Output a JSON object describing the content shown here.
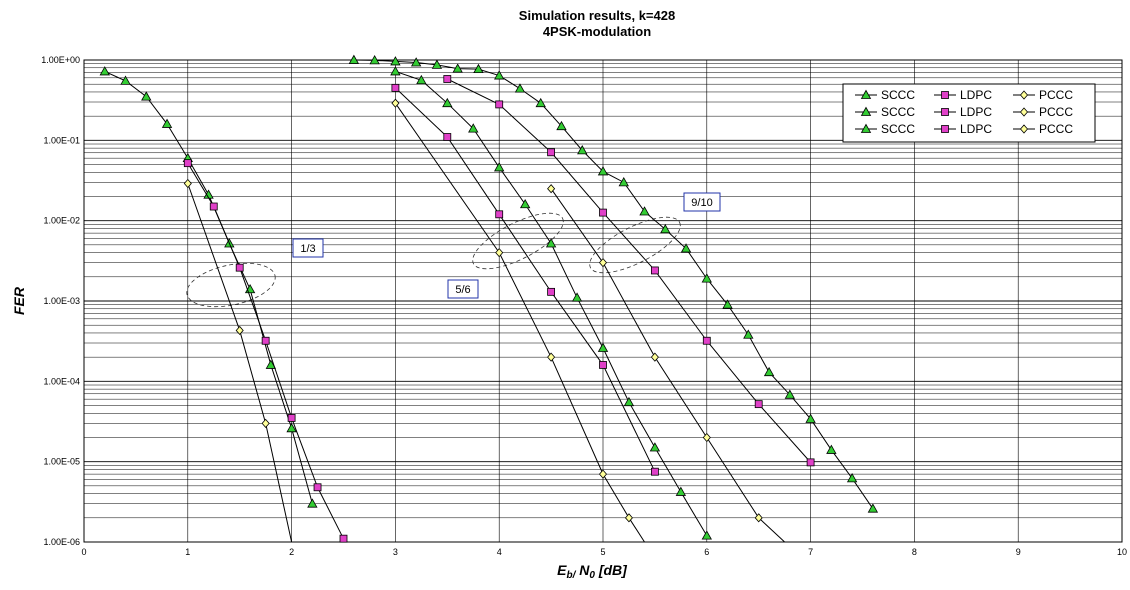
{
  "chart_data": {
    "type": "line",
    "title": "Simulation results, k=428",
    "subtitle": "4PSK-modulation",
    "xlabel_main": "E",
    "xlabel_sub1": "b/",
    "xlabel_mid": " N",
    "xlabel_sub2": "0",
    "xlabel_unit": " [dB]",
    "ylabel": "FER",
    "xlim": [
      0,
      10
    ],
    "ylim": [
      1e-06,
      1
    ],
    "yscale": "log",
    "grid": true,
    "x_ticks": [
      "0",
      "1",
      "2",
      "3",
      "4",
      "5",
      "6",
      "7",
      "8",
      "9",
      "10"
    ],
    "y_ticks": [
      "1.00E+00",
      "1.00E-01",
      "1.00E-02",
      "1.00E-03",
      "1.00E-04",
      "1.00E-05",
      "1.00E-06"
    ],
    "legend_position": "top-right",
    "legend": [
      [
        "SCCC",
        "LDPC",
        "PCCC"
      ],
      [
        "SCCC",
        "LDPC",
        "PCCC"
      ],
      [
        "SCCC",
        "LDPC",
        "PCCC"
      ]
    ],
    "annotations": [
      {
        "label": "1/3"
      },
      {
        "label": "5/6"
      },
      {
        "label": "9/10"
      }
    ],
    "colors": {
      "scc_marker": "#33cc33",
      "ldpc_marker": "#e040c8",
      "pccc_marker": "#ffff99",
      "line": "#000000",
      "annotation_border": "#2233aa"
    },
    "series": [
      {
        "name": "SCCC",
        "marker": "triangle",
        "x": [
          0.2,
          0.4,
          0.6,
          0.8,
          1.0,
          1.2,
          1.4,
          1.6,
          1.8,
          2.0,
          2.2
        ],
        "y": [
          0.72,
          0.55,
          0.35,
          0.16,
          0.06,
          0.021,
          0.0052,
          0.0014,
          0.00016,
          2.6e-05,
          3e-06
        ]
      },
      {
        "name": "LDPC",
        "marker": "square",
        "x": [
          1.0,
          1.25,
          1.5,
          1.75,
          2.0,
          2.25,
          2.5
        ],
        "y": [
          0.052,
          0.015,
          0.0026,
          0.00032,
          3.5e-05,
          4.8e-06,
          1.1e-06
        ]
      },
      {
        "name": "PCCC",
        "marker": "diamond",
        "x": [
          1.0,
          1.5,
          1.75,
          2.0
        ],
        "y": [
          0.029,
          0.00043,
          3e-05,
          1e-06
        ]
      },
      {
        "name": "SCCC",
        "marker": "triangle",
        "x": [
          3.0,
          3.25,
          3.5,
          3.75,
          4.0,
          4.25,
          4.5,
          4.75,
          5.0,
          5.25,
          5.5,
          5.75,
          6.0
        ],
        "y": [
          0.72,
          0.56,
          0.29,
          0.14,
          0.046,
          0.016,
          0.0052,
          0.0011,
          0.00026,
          5.5e-05,
          1.5e-05,
          4.2e-06,
          1.2e-06
        ]
      },
      {
        "name": "LDPC",
        "marker": "square",
        "x": [
          3.0,
          3.5,
          4.0,
          4.5,
          5.0,
          5.5
        ],
        "y": [
          0.45,
          0.11,
          0.012,
          0.0013,
          0.00016,
          7.5e-06
        ]
      },
      {
        "name": "PCCC",
        "marker": "diamond",
        "x": [
          3.0,
          4.0,
          4.5,
          5.0,
          5.25,
          5.4
        ],
        "y": [
          0.29,
          0.004,
          0.0002,
          7e-06,
          2e-06,
          1e-06
        ]
      },
      {
        "name": "SCCC",
        "marker": "triangle",
        "x": [
          2.6,
          2.8,
          3.0,
          3.2,
          3.4,
          3.6,
          3.8,
          4.0,
          4.2,
          4.4,
          4.6,
          4.8,
          5.0,
          5.2,
          5.4,
          5.6,
          5.8,
          6.0,
          6.2,
          6.4,
          6.6,
          6.8,
          7.0,
          7.2,
          7.4,
          7.6
        ],
        "y": [
          1.0,
          0.99,
          0.96,
          0.93,
          0.87,
          0.78,
          0.77,
          0.64,
          0.44,
          0.29,
          0.15,
          0.075,
          0.041,
          0.03,
          0.013,
          0.0078,
          0.0045,
          0.0019,
          0.0009,
          0.00038,
          0.00013,
          6.8e-05,
          3.4e-05,
          1.4e-05,
          6.2e-06,
          2.6e-06
        ]
      },
      {
        "name": "LDPC",
        "marker": "square",
        "x": [
          3.5,
          4.0,
          4.5,
          5.0,
          5.5,
          6.0,
          6.5,
          7.0
        ],
        "y": [
          0.58,
          0.28,
          0.071,
          0.0126,
          0.0024,
          0.00032,
          5.2e-05,
          9.8e-06
        ]
      },
      {
        "name": "PCCC",
        "marker": "diamond",
        "x": [
          4.5,
          5.0,
          5.5,
          6.0,
          6.5,
          6.75
        ],
        "y": [
          0.025,
          0.003,
          0.0002,
          2e-05,
          2e-06,
          1e-06
        ]
      }
    ]
  }
}
